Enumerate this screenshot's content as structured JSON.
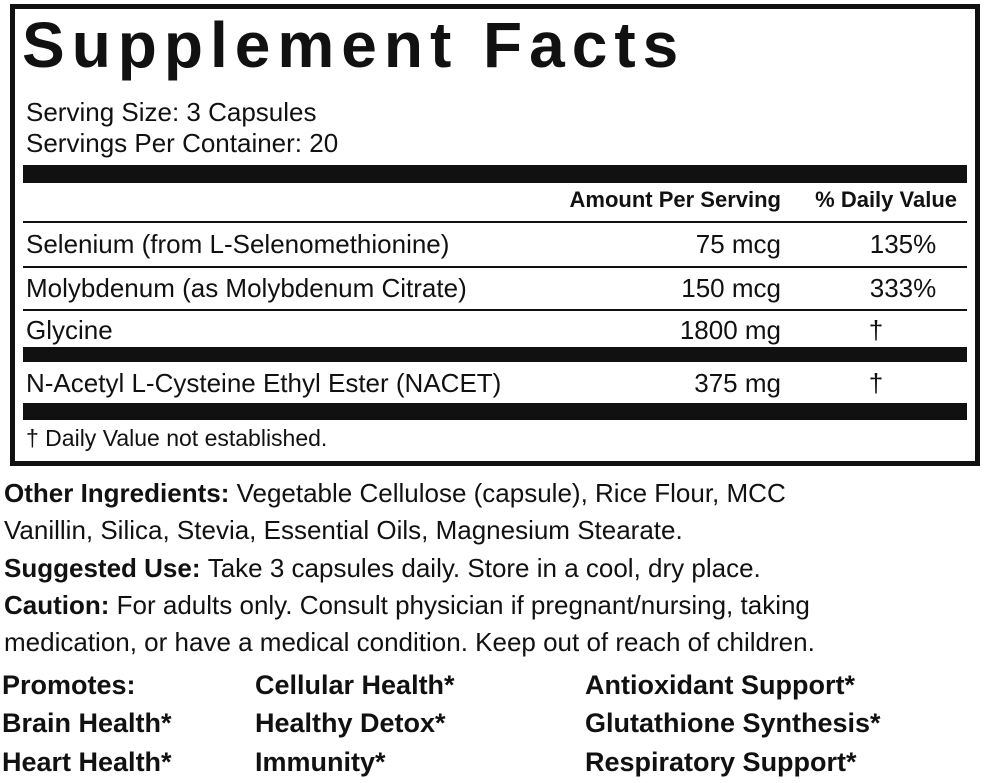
{
  "label": {
    "title": "Supplement Facts",
    "serving_size": "Serving Size: 3 Capsules",
    "servings_per_container": "Servings Per Container: 20",
    "header": {
      "amount": "Amount Per Serving",
      "daily_value": "% Daily Value"
    },
    "rows": [
      [
        "Selenium (from L-Selenomethionine)",
        "75 mcg",
        "135%"
      ],
      [
        "Molybdenum (as Molybdenum Citrate)",
        "150 mcg",
        "333%"
      ],
      [
        "Glycine",
        "1800 mg",
        "†"
      ],
      [
        "N-Acetyl L-Cysteine Ethyl Ester (NACET)",
        "375 mg",
        "†"
      ]
    ],
    "footnote": "† Daily Value not established."
  },
  "other_ingredients": {
    "label": "Other Ingredients:",
    "lines": [
      "Vegetable Cellulose (capsule), Rice Flour, MCC",
      "Vanillin, Silica, Stevia, Essential Oils, Magnesium Stearate."
    ]
  },
  "suggested_use": {
    "label": "Suggested Use:",
    "text": "Take 3 capsules daily. Store in a cool, dry place."
  },
  "caution": {
    "label": "Caution:",
    "lines": [
      "For adults only. Consult physician if pregnant/nursing, taking",
      "medication, or have a medical condition. Keep out of reach of children."
    ]
  },
  "promotes": [
    [
      "Promotes:",
      "Cellular Health*",
      "Antioxidant Support*"
    ],
    [
      "Brain Health*",
      "Healthy Detox*",
      "Glutathione Synthesis*"
    ],
    [
      "Heart Health*",
      "Immunity*",
      "Respiratory Support*"
    ]
  ]
}
